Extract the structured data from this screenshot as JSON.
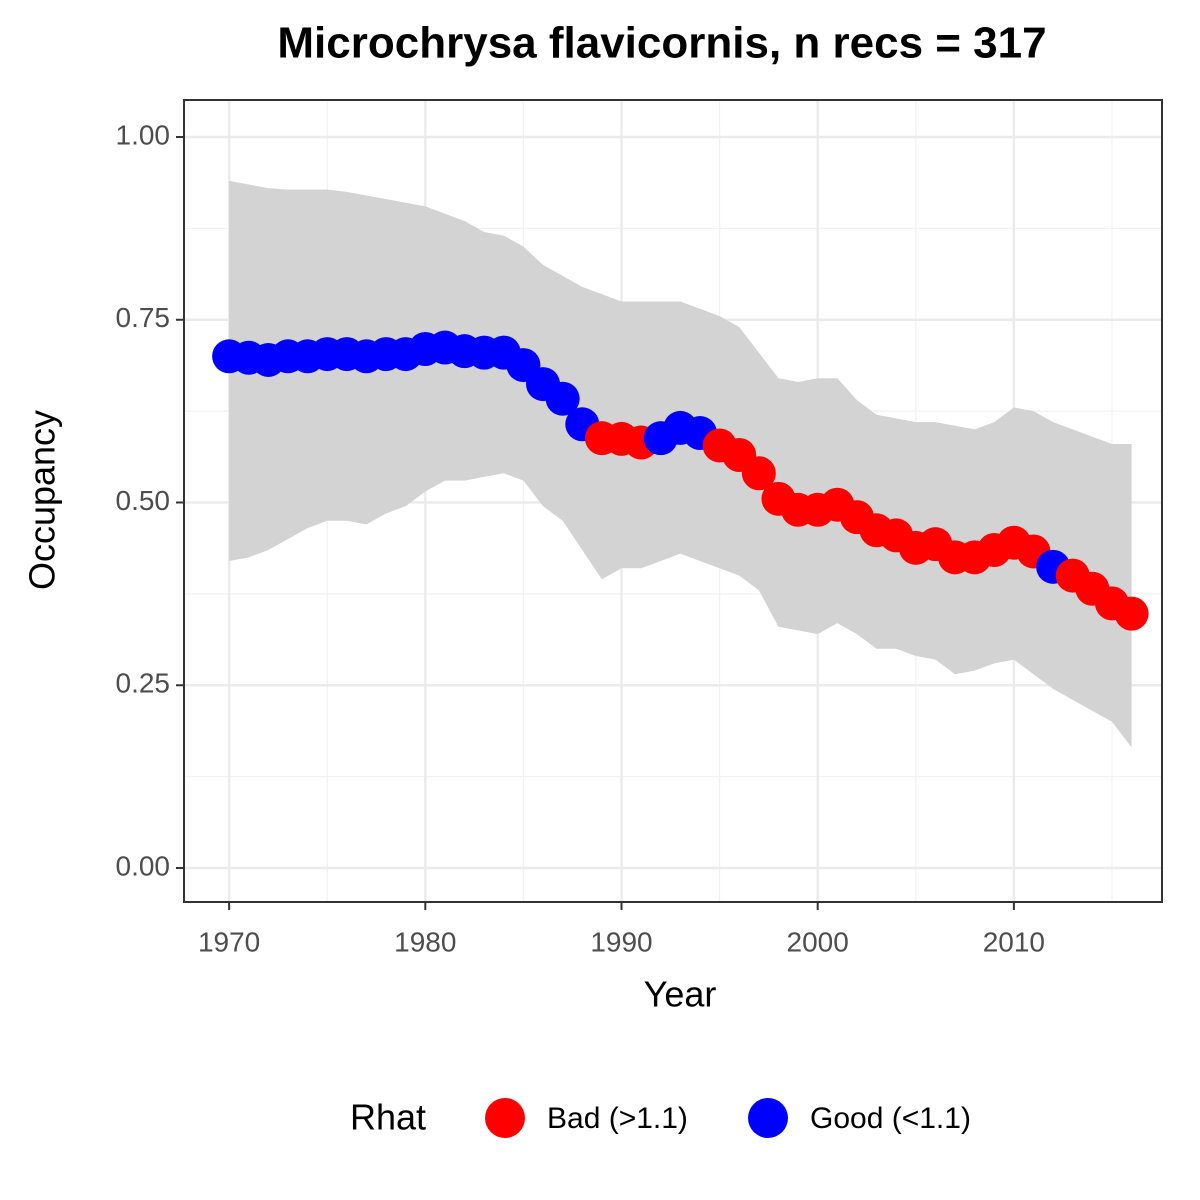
{
  "chart_data": {
    "type": "scatter",
    "title": "Microchrysa flavicornis, n recs = 317",
    "x_label": "Year",
    "y_label": "Occupancy",
    "legend_title": "Rhat",
    "x": [
      1970,
      1971,
      1972,
      1973,
      1974,
      1975,
      1976,
      1977,
      1978,
      1979,
      1980,
      1981,
      1982,
      1983,
      1984,
      1985,
      1986,
      1987,
      1988,
      1989,
      1990,
      1991,
      1992,
      1993,
      1994,
      1995,
      1996,
      1997,
      1998,
      1999,
      2000,
      2001,
      2002,
      2003,
      2004,
      2005,
      2006,
      2007,
      2008,
      2009,
      2010,
      2011,
      2012,
      2013,
      2014,
      2015,
      2016
    ],
    "series": [
      {
        "name": "Bad (>1.1)",
        "color": "#ff0000",
        "values": [
          null,
          null,
          null,
          null,
          null,
          null,
          null,
          null,
          null,
          null,
          null,
          null,
          null,
          null,
          null,
          null,
          null,
          null,
          null,
          0.588,
          0.587,
          0.582,
          null,
          null,
          null,
          0.578,
          0.565,
          0.54,
          0.505,
          0.49,
          0.49,
          0.497,
          0.48,
          0.462,
          0.455,
          0.438,
          0.443,
          0.425,
          0.425,
          0.435,
          0.445,
          0.433,
          null,
          0.4,
          0.382,
          0.362,
          0.348
        ]
      },
      {
        "name": "Good (<1.1)",
        "color": "#0000ff",
        "values": [
          0.7,
          0.698,
          0.695,
          0.7,
          0.7,
          0.703,
          0.703,
          0.7,
          0.703,
          0.703,
          0.71,
          0.712,
          0.707,
          0.705,
          0.705,
          0.688,
          0.662,
          0.642,
          0.607,
          null,
          null,
          null,
          0.588,
          0.602,
          0.595,
          null,
          null,
          null,
          null,
          null,
          null,
          null,
          null,
          null,
          null,
          null,
          null,
          null,
          null,
          null,
          null,
          null,
          0.412,
          null,
          null,
          null,
          null
        ]
      }
    ],
    "band_color": "#d3d3d3",
    "upper": [
      0.94,
      0.935,
      0.93,
      0.928,
      0.928,
      0.928,
      0.925,
      0.92,
      0.915,
      0.91,
      0.905,
      0.895,
      0.885,
      0.87,
      0.865,
      0.85,
      0.825,
      0.81,
      0.795,
      0.785,
      0.775,
      0.775,
      0.775,
      0.775,
      0.765,
      0.755,
      0.74,
      0.705,
      0.67,
      0.665,
      0.67,
      0.67,
      0.64,
      0.62,
      0.615,
      0.61,
      0.61,
      0.605,
      0.6,
      0.61,
      0.63,
      0.625,
      0.61,
      0.6,
      0.59,
      0.58,
      0.58
    ],
    "lower": [
      0.42,
      0.425,
      0.435,
      0.45,
      0.465,
      0.475,
      0.475,
      0.47,
      0.485,
      0.495,
      0.515,
      0.53,
      0.53,
      0.535,
      0.54,
      0.53,
      0.495,
      0.475,
      0.435,
      0.395,
      0.41,
      0.41,
      0.42,
      0.43,
      0.42,
      0.41,
      0.4,
      0.38,
      0.33,
      0.325,
      0.32,
      0.335,
      0.32,
      0.3,
      0.3,
      0.29,
      0.285,
      0.265,
      0.27,
      0.28,
      0.285,
      0.265,
      0.245,
      0.23,
      0.215,
      0.2,
      0.165
    ],
    "xlim": [
      1967.7,
      2017.55
    ],
    "ylim": [
      -0.0465,
      1.0506
    ],
    "xticks": [
      1970,
      1980,
      1990,
      2000,
      2010
    ],
    "yticks": [
      {
        "value": 0,
        "label": "0.00"
      },
      {
        "value": 0.25,
        "label": "0.25"
      },
      {
        "value": 0.5,
        "label": "0.50"
      },
      {
        "value": 0.75,
        "label": "0.75"
      },
      {
        "value": 1,
        "label": "1.00"
      }
    ],
    "xticks_minor": [
      1975,
      1985,
      1995,
      2005,
      2015
    ],
    "yticks_minor": [
      0.125,
      0.375,
      0.625,
      0.875
    ],
    "grid": true,
    "legend_position": "bottom"
  }
}
